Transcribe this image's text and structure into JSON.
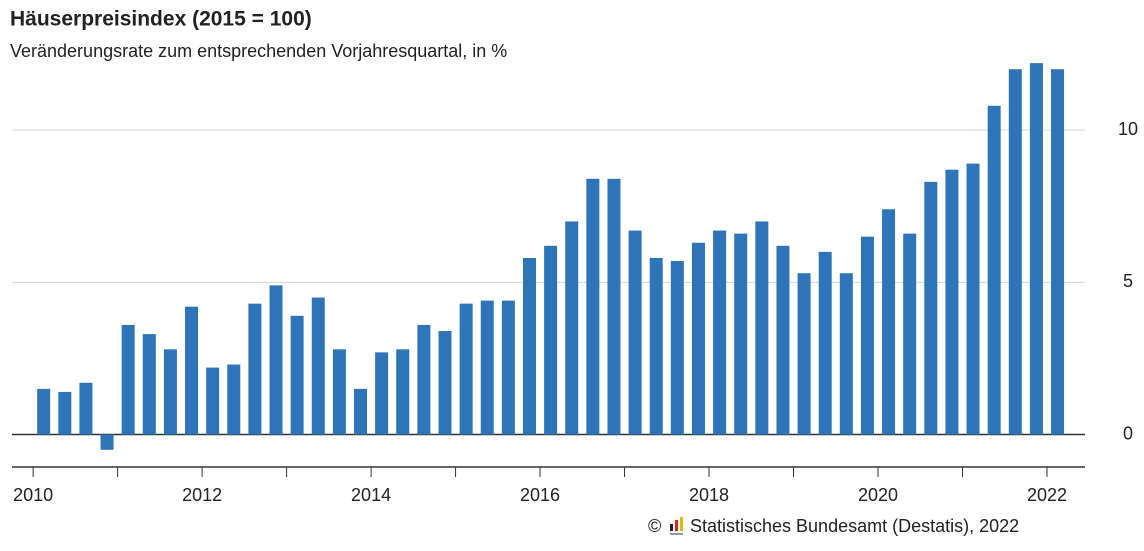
{
  "chart_data": {
    "type": "bar",
    "title": "Häuserpreisindex (2015 = 100)",
    "subtitle": "Veränderungsrate zum entsprechenden Vorjahresquartal, in %",
    "source": "Statistisches Bundesamt (Destatis), 2022",
    "color": "#2e74b8",
    "x": [
      2010.125,
      2010.375,
      2010.625,
      2010.875,
      2011.125,
      2011.375,
      2011.625,
      2011.875,
      2012.125,
      2012.375,
      2012.625,
      2012.875,
      2013.125,
      2013.375,
      2013.625,
      2013.875,
      2014.125,
      2014.375,
      2014.625,
      2014.875,
      2015.125,
      2015.375,
      2015.625,
      2015.875,
      2016.125,
      2016.375,
      2016.625,
      2016.875,
      2017.125,
      2017.375,
      2017.625,
      2017.875,
      2018.125,
      2018.375,
      2018.625,
      2018.875,
      2019.125,
      2019.375,
      2019.625,
      2019.875,
      2020.125,
      2020.375,
      2020.625,
      2020.875,
      2021.125,
      2021.375,
      2021.625,
      2021.875,
      2022.125
    ],
    "values": [
      1.5,
      1.4,
      1.7,
      -0.5,
      3.6,
      3.3,
      2.8,
      4.2,
      2.2,
      2.3,
      4.3,
      4.9,
      3.9,
      4.5,
      2.8,
      1.5,
      2.7,
      2.8,
      3.6,
      3.4,
      4.3,
      4.4,
      4.4,
      5.8,
      6.2,
      7.0,
      8.4,
      8.4,
      6.7,
      5.8,
      5.7,
      6.3,
      6.7,
      6.6,
      7.0,
      6.2,
      5.3,
      6.0,
      5.3,
      6.5,
      7.4,
      6.6,
      8.3,
      8.7,
      8.9,
      10.8,
      12.0,
      12.2,
      12.0
    ],
    "xlim": [
      2009.75,
      2022.45
    ],
    "xticks": [
      2010,
      2012,
      2014,
      2016,
      2018,
      2020,
      2022
    ],
    "xminorticks": [
      2011,
      2013,
      2015,
      2017,
      2019,
      2021
    ],
    "ylim": [
      -1,
      12.5
    ],
    "yticks": [
      0,
      5,
      10
    ],
    "grid": true
  }
}
